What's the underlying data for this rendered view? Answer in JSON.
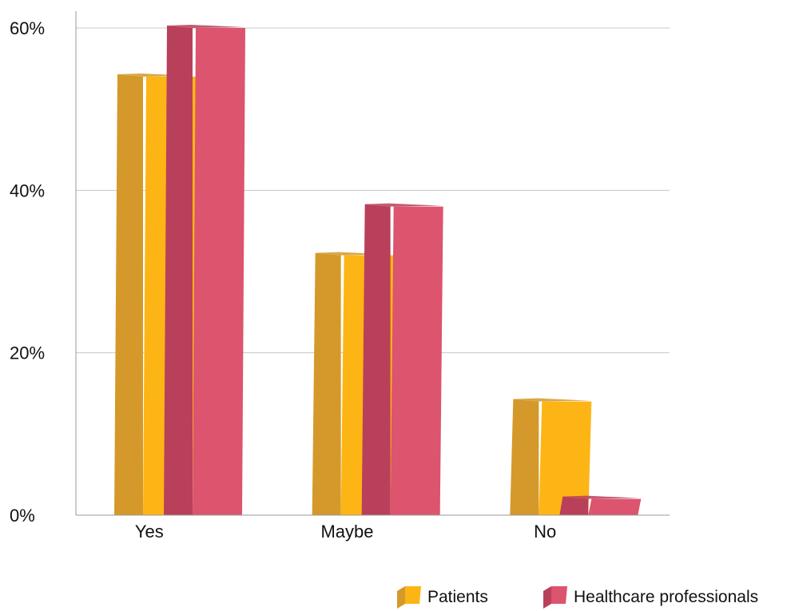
{
  "chart_data": {
    "type": "bar",
    "categories": [
      "Yes",
      "Maybe",
      "No"
    ],
    "series": [
      {
        "name": "Patients",
        "values": [
          54,
          32,
          14
        ],
        "color": "#FDB515",
        "side_color": "#D4992A"
      },
      {
        "name": "Healthcare professionals",
        "values": [
          60,
          38,
          2
        ],
        "color": "#DC546D",
        "side_color": "#B9405A"
      }
    ],
    "ylim": [
      0,
      60
    ],
    "yticks": [
      0,
      20,
      40,
      60
    ],
    "ytick_labels": [
      "0%",
      "20%",
      "40%",
      "60%"
    ],
    "grid": true,
    "legend_position": "bottom-right",
    "style": "3d"
  }
}
